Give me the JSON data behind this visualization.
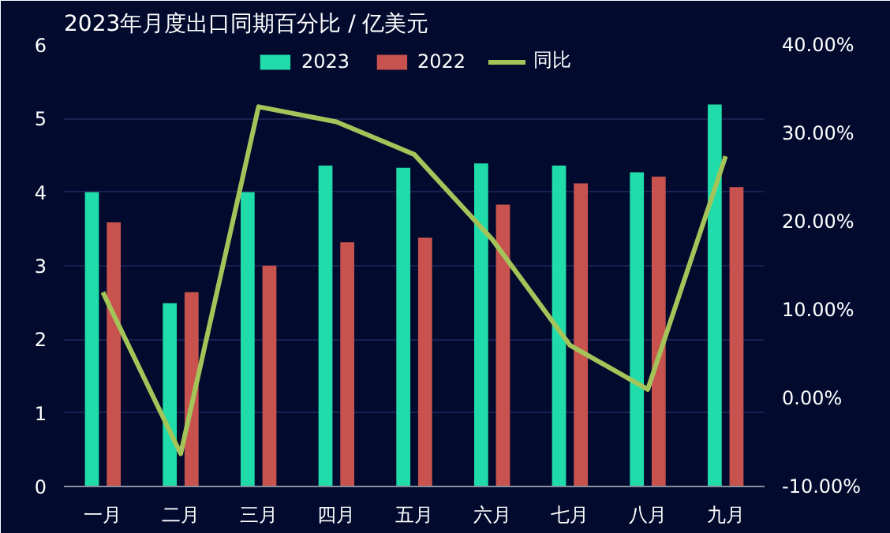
{
  "chart_data": {
    "type": "bar",
    "title": "2023年月度出口同期百分比 / 亿美元",
    "categories": [
      "一月",
      "二月",
      "三月",
      "四月",
      "五月",
      "六月",
      "七月",
      "八月",
      "九月"
    ],
    "series": [
      {
        "name": "2023",
        "color": "#1fdcaa",
        "values": [
          4.0,
          2.49,
          4.0,
          4.36,
          4.33,
          4.39,
          4.36,
          4.27,
          5.19
        ]
      },
      {
        "name": "2022",
        "color": "#c8524e",
        "values": [
          3.59,
          2.64,
          3.0,
          3.32,
          3.38,
          3.83,
          4.12,
          4.21,
          4.07
        ]
      },
      {
        "name": "同比",
        "type": "line",
        "axis": "y2",
        "color": "#a4c45a",
        "values": [
          12.0,
          -6.3,
          33.0,
          31.3,
          27.6,
          18.0,
          6.0,
          1.0,
          27.4
        ]
      }
    ],
    "ylim": [
      0,
      6
    ],
    "yticks": [
      0,
      1,
      2,
      3,
      4,
      5,
      6
    ],
    "y2lim": [
      -10,
      40
    ],
    "y2ticks": [
      {
        "value": -10,
        "label": "-10.00%"
      },
      {
        "value": 0,
        "label": "0.00%"
      },
      {
        "value": 10,
        "label": "10.00%"
      },
      {
        "value": 20,
        "label": "20.00%"
      },
      {
        "value": 30,
        "label": "30.00%"
      },
      {
        "value": 40,
        "label": "40.00%"
      }
    ],
    "grid": "y",
    "legend": "top",
    "marker": "none"
  }
}
